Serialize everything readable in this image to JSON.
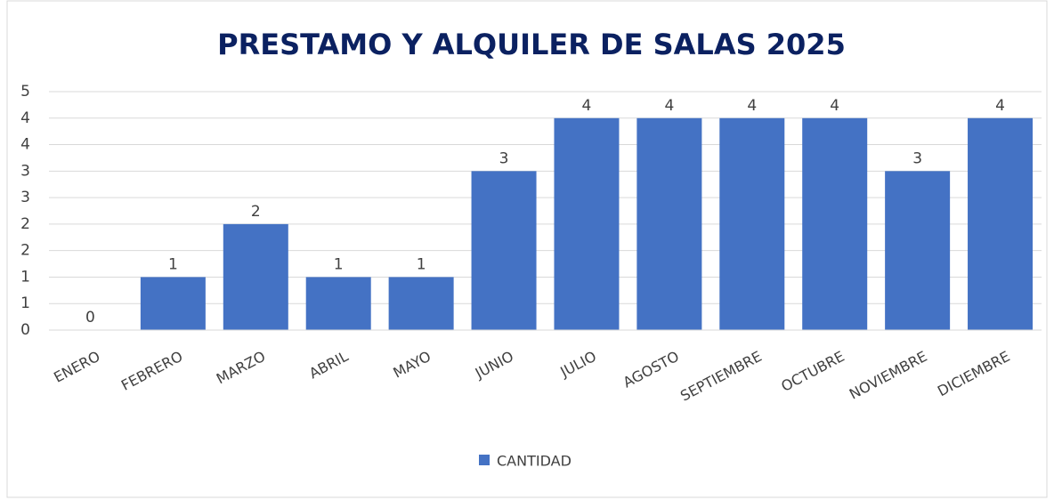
{
  "chart_data": {
    "type": "bar",
    "title": "PRESTAMO Y ALQUILER DE SALAS 2025",
    "categories": [
      "ENERO",
      "FEBRERO",
      "MARZO",
      "ABRIL",
      "MAYO",
      "JUNIO",
      "JULIO",
      "AGOSTO",
      "SEPTIEMBRE",
      "OCTUBRE",
      "NOVIEMBRE",
      "DICIEMBRE"
    ],
    "series": [
      {
        "name": "CANTIDAD",
        "color": "#4472c4",
        "values": [
          0,
          1,
          2,
          1,
          1,
          3,
          4,
          4,
          4,
          4,
          3,
          4
        ]
      }
    ],
    "ylim": [
      0,
      4.5
    ],
    "yticks": [
      0,
      {
        "value": 0.5,
        "label": "1"
      },
      1,
      {
        "value": 1.5,
        "label": "2"
      },
      2,
      {
        "value": 2.5,
        "label": "3"
      },
      3,
      {
        "value": 3.5,
        "label": "4"
      },
      4,
      {
        "value": 4.5,
        "label": "5"
      }
    ],
    "grid": true,
    "legend": "bottom"
  }
}
